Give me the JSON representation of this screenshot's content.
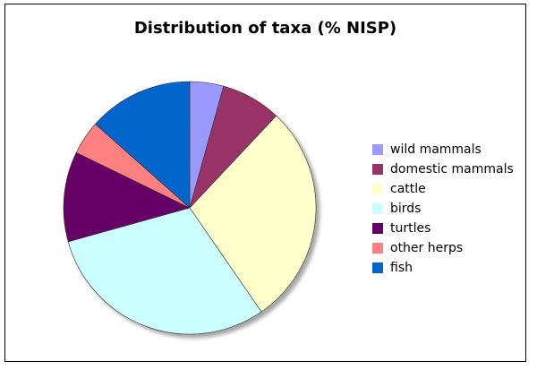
{
  "chart_data": {
    "type": "pie",
    "title": "Distribution of taxa (% NISP)",
    "slices": [
      {
        "label": "wild mammals",
        "value": 4.5,
        "color": "#9999ff"
      },
      {
        "label": "domestic mammals",
        "value": 8.0,
        "color": "#993366"
      },
      {
        "label": "cattle",
        "value": 29.5,
        "color": "#ffffcc"
      },
      {
        "label": "birds",
        "value": 31.5,
        "color": "#ccffff"
      },
      {
        "label": "turtles",
        "value": 12.0,
        "color": "#660066"
      },
      {
        "label": "other herps",
        "value": 4.5,
        "color": "#ff8080"
      },
      {
        "label": "fish",
        "value": 14.0,
        "color": "#0066cc"
      }
    ],
    "start_angle_deg": 0,
    "direction": "clockwise",
    "legend_position": "right",
    "grid": false
  }
}
